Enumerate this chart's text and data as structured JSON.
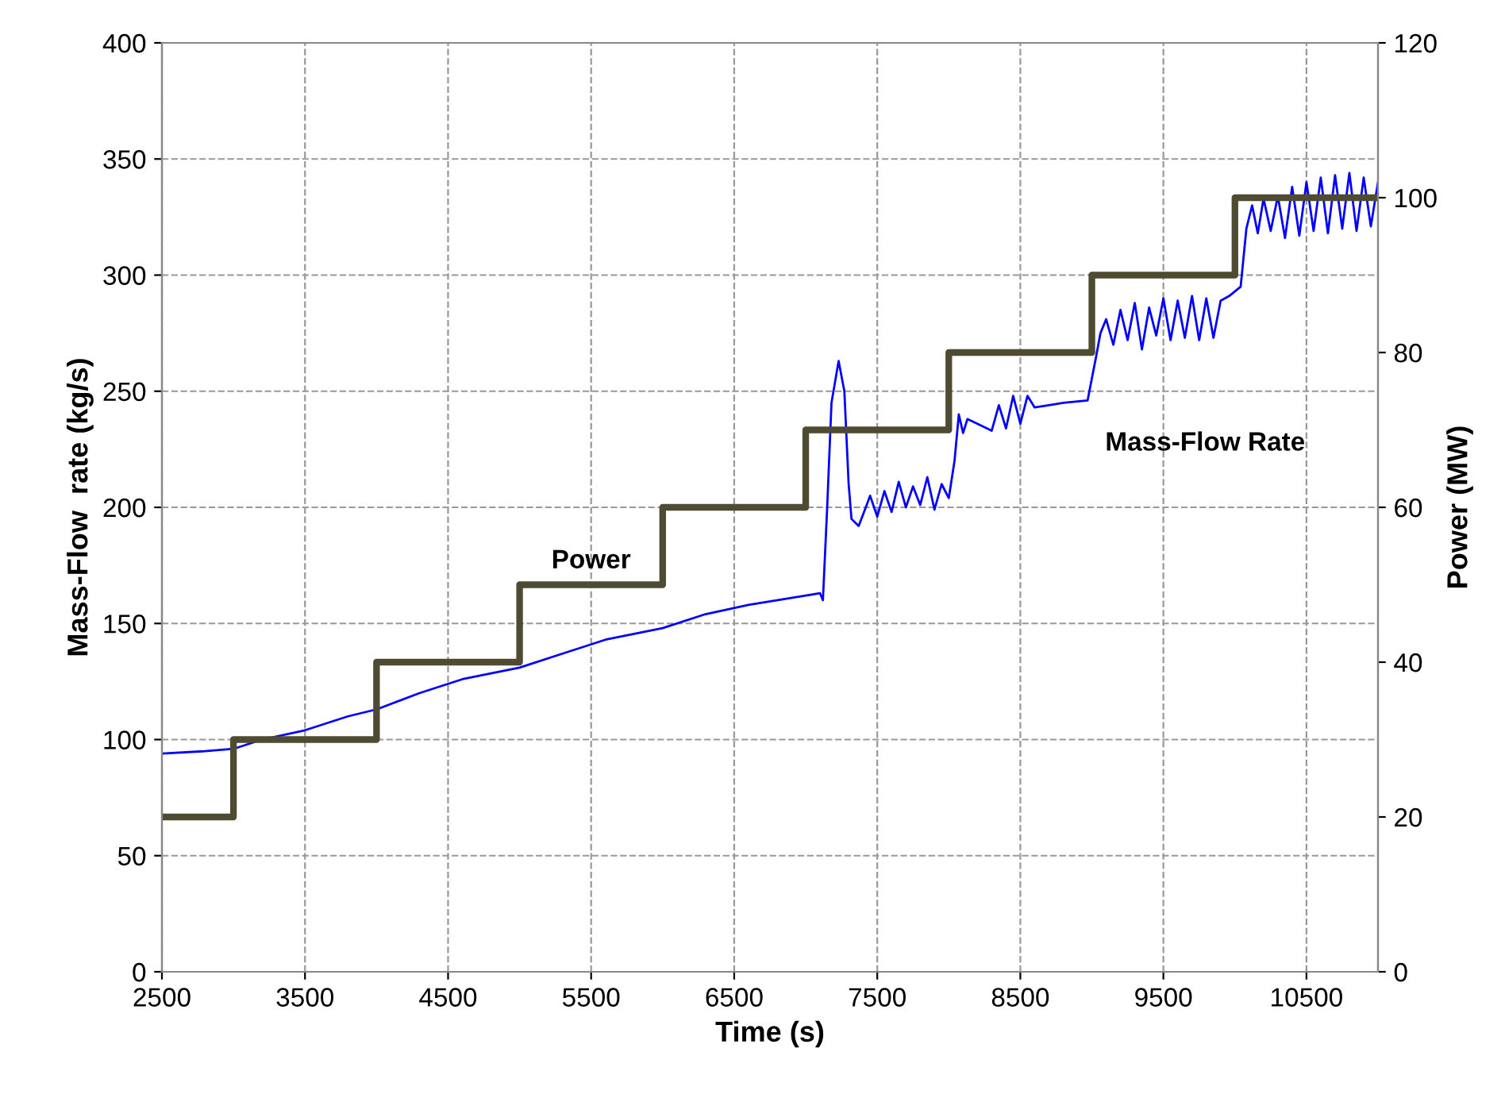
{
  "chart_data": {
    "type": "line",
    "xlabel": "Time (s)",
    "ylabel": "Mass-Flow  rate (kg/s)",
    "y2label": "Power (MW)",
    "xlim": [
      2500,
      11000
    ],
    "xticks": [
      2500,
      3500,
      4500,
      5500,
      6500,
      7500,
      8500,
      9500,
      10500
    ],
    "ylim": [
      0,
      400
    ],
    "yticks": [
      0,
      50,
      100,
      150,
      200,
      250,
      300,
      350,
      400
    ],
    "y2lim": [
      0,
      120
    ],
    "y2ticks": [
      0,
      20,
      40,
      60,
      80,
      100,
      120
    ],
    "grid": true,
    "legend": false,
    "series": [
      {
        "name": "Mass-Flow Rate",
        "color": "#0000ff",
        "x": [
          2500,
          2800,
          3000,
          3200,
          3500,
          3800,
          4000,
          4300,
          4600,
          5000,
          5300,
          5600,
          6000,
          6300,
          6600,
          7000,
          7100,
          7120,
          7150,
          7180,
          7230,
          7270,
          7300,
          7320,
          7370,
          7420,
          7450,
          7500,
          7550,
          7600,
          7650,
          7700,
          7750,
          7800,
          7850,
          7900,
          7950,
          8000,
          8040,
          8070,
          8100,
          8130,
          8200,
          8300,
          8350,
          8400,
          8450,
          8500,
          8550,
          8600,
          8700,
          8800,
          8970,
          9030,
          9060,
          9100,
          9150,
          9200,
          9250,
          9300,
          9350,
          9400,
          9450,
          9500,
          9550,
          9600,
          9650,
          9700,
          9750,
          9800,
          9850,
          9900,
          9960,
          10040,
          10080,
          10120,
          10160,
          10200,
          10250,
          10300,
          10350,
          10400,
          10450,
          10500,
          10550,
          10600,
          10650,
          10700,
          10750,
          10800,
          10850,
          10900,
          10950,
          11000
        ],
        "values": [
          94,
          95,
          96,
          100,
          104,
          110,
          113,
          120,
          126,
          131,
          137,
          143,
          148,
          154,
          158,
          162,
          163,
          160,
          200,
          245,
          263,
          250,
          210,
          195,
          192,
          200,
          205,
          196,
          207,
          198,
          211,
          200,
          209,
          201,
          213,
          199,
          210,
          204,
          220,
          240,
          232,
          238,
          236,
          233,
          244,
          234,
          248,
          236,
          248,
          243,
          244,
          245,
          246,
          265,
          275,
          281,
          270,
          285,
          272,
          288,
          268,
          286,
          274,
          290,
          272,
          289,
          273,
          291,
          272,
          290,
          273,
          289,
          291,
          295,
          320,
          330,
          318,
          333,
          319,
          334,
          316,
          338,
          317,
          340,
          319,
          342,
          318,
          343,
          320,
          344,
          319,
          342,
          321,
          340
        ]
      },
      {
        "name": "Power",
        "type": "step",
        "axis": "y2",
        "color": "#4f4a32",
        "x": [
          2500,
          3000,
          4000,
          5000,
          6000,
          7000,
          8000,
          9000,
          10000,
          11000
        ],
        "values": [
          20,
          30,
          40,
          50,
          60,
          70,
          80,
          90,
          100,
          100
        ]
      }
    ]
  }
}
